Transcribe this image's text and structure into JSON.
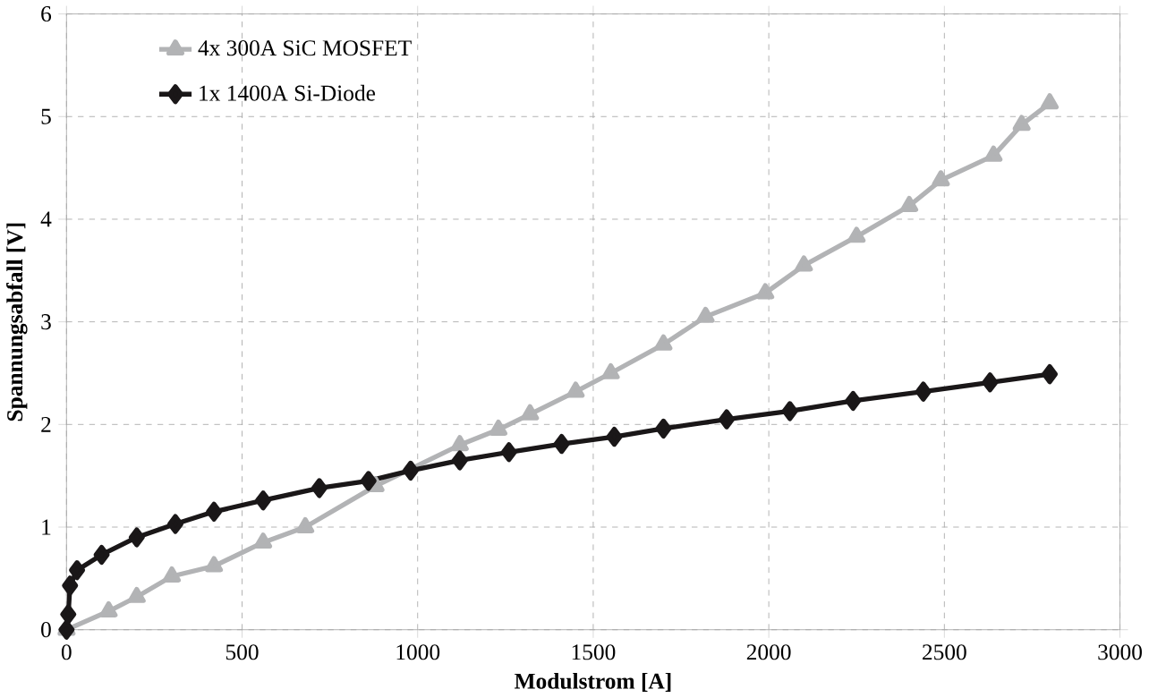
{
  "chart_data": {
    "type": "line",
    "xlabel": "Modulstrom [A]",
    "ylabel": "Spannungsabfall [V]",
    "xlim": [
      0,
      3000
    ],
    "xticks": [
      0,
      500,
      1000,
      1500,
      2000,
      2500,
      3000
    ],
    "ylim": [
      0,
      6
    ],
    "yticks": [
      0,
      1,
      2,
      3,
      4,
      5,
      6
    ],
    "grid": true,
    "legend": "top left",
    "line_style": "solid",
    "series": [
      {
        "name": "4x 300A SiC MOSFET",
        "color": "#b2b3b5",
        "marker": "triangle",
        "x": [
          0,
          120,
          200,
          300,
          420,
          560,
          680,
          880,
          980,
          1120,
          1230,
          1320,
          1450,
          1550,
          1700,
          1820,
          1990,
          2100,
          2250,
          2400,
          2490,
          2640,
          2720,
          2800
        ],
        "values": [
          0,
          0.18,
          0.32,
          0.52,
          0.62,
          0.85,
          1.0,
          1.4,
          null,
          1.8,
          1.95,
          2.1,
          2.32,
          2.5,
          2.78,
          3.05,
          3.28,
          3.55,
          3.83,
          4.13,
          4.38,
          4.62,
          4.92,
          5.13
        ]
      },
      {
        "name": "1x 1400A Si-Diode",
        "color": "#1a1718",
        "marker": "diamond",
        "x": [
          0,
          5,
          10,
          30,
          100,
          200,
          310,
          420,
          560,
          720,
          860,
          980,
          1120,
          1260,
          1410,
          1560,
          1700,
          1880,
          2060,
          2240,
          2440,
          2630,
          2800
        ],
        "values": [
          0,
          0.15,
          0.43,
          0.58,
          0.73,
          0.9,
          1.03,
          1.15,
          1.26,
          1.38,
          1.45,
          1.55,
          1.65,
          1.73,
          1.81,
          1.88,
          1.96,
          2.05,
          2.13,
          2.23,
          2.32,
          2.41,
          2.49
        ]
      }
    ]
  }
}
